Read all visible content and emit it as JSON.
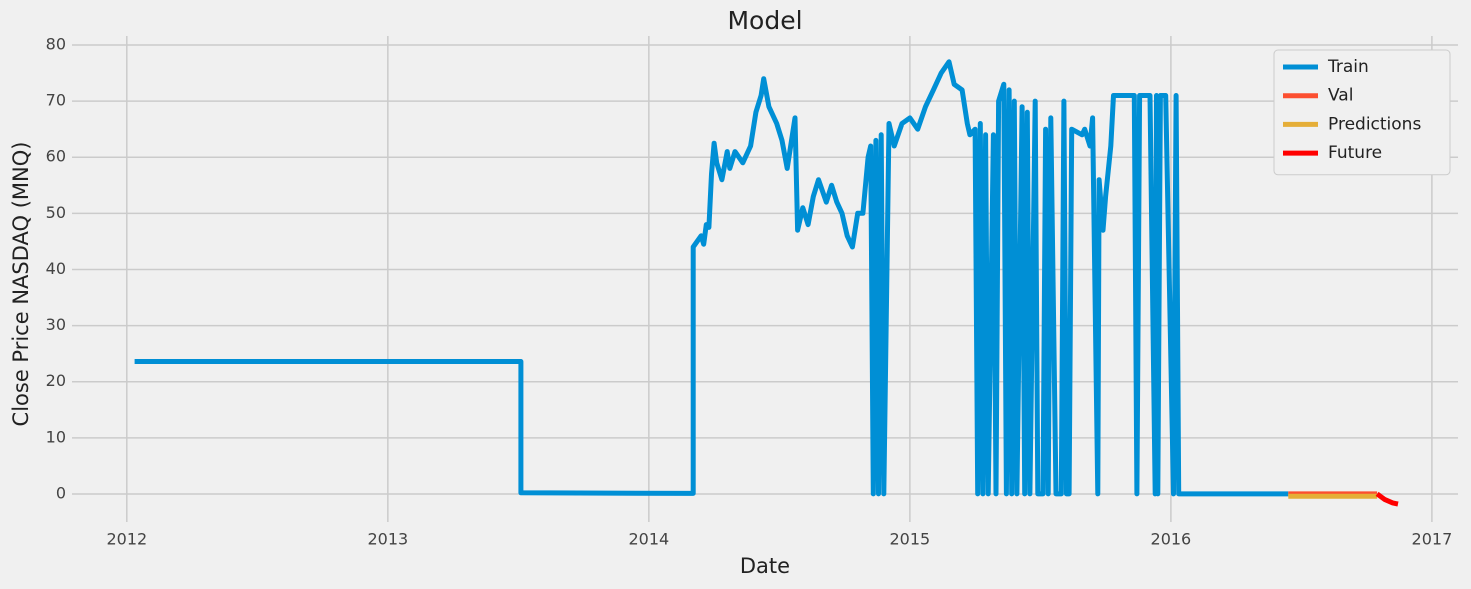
{
  "chart_data": {
    "type": "line",
    "title": "Model",
    "xlabel": "Date",
    "ylabel": "Close Price NASDAQ (MNQ)",
    "xlim": [
      2011.79,
      2017.1
    ],
    "xticks": [
      2012,
      2013,
      2014,
      2015,
      2016,
      2017
    ],
    "ylim": [
      -5,
      81.6
    ],
    "yticks": [
      0,
      10,
      20,
      30,
      40,
      50,
      60,
      70,
      80
    ],
    "grid": true,
    "legend": "upper right",
    "series": [
      {
        "name": "Train",
        "color": "#008fd5",
        "x": [
          2012.03,
          2013.51,
          2013.51,
          2014.17,
          2014.17,
          2014.2,
          2014.21,
          2014.22,
          2014.23,
          2014.24,
          2014.25,
          2014.26,
          2014.28,
          2014.3,
          2014.31,
          2014.33,
          2014.36,
          2014.39,
          2014.41,
          2014.43,
          2014.44,
          2014.46,
          2014.49,
          2014.51,
          2014.53,
          2014.54,
          2014.56,
          2014.57,
          2014.59,
          2014.61,
          2014.63,
          2014.65,
          2014.68,
          2014.7,
          2014.72,
          2014.74,
          2014.76,
          2014.78,
          2014.8,
          2014.82,
          2014.84,
          2014.85,
          2014.86,
          2014.87,
          2014.88,
          2014.89,
          2014.9,
          2014.92,
          2014.94,
          2014.97,
          2015.0,
          2015.03,
          2015.06,
          2015.09,
          2015.12,
          2015.15,
          2015.17,
          2015.2,
          2015.22,
          2015.23,
          2015.25,
          2015.26,
          2015.27,
          2015.28,
          2015.29,
          2015.3,
          2015.32,
          2015.33,
          2015.34,
          2015.36,
          2015.37,
          2015.38,
          2015.39,
          2015.4,
          2015.41,
          2015.43,
          2015.44,
          2015.45,
          2015.46,
          2015.48,
          2015.49,
          2015.51,
          2015.52,
          2015.53,
          2015.54,
          2015.56,
          2015.58,
          2015.59,
          2015.6,
          2015.61,
          2015.62,
          2015.66,
          2015.67,
          2015.69,
          2015.7,
          2015.72,
          2015.725,
          2015.74,
          2015.75,
          2015.77,
          2015.78,
          2015.82,
          2015.86,
          2015.87,
          2015.88,
          2015.92,
          2015.94,
          2015.945,
          2015.95,
          2015.96,
          2015.98,
          2016.01,
          2016.02,
          2016.03,
          2016.45
        ],
        "values": [
          23.6,
          23.6,
          0.2,
          0.1,
          44,
          46,
          44.5,
          48,
          47.5,
          57,
          62.5,
          59,
          56,
          61,
          58,
          61,
          59,
          62,
          68,
          71,
          74,
          69,
          66,
          63,
          58,
          61,
          67,
          47,
          51,
          48,
          53,
          56,
          52,
          55,
          52,
          50,
          46,
          44,
          50,
          50,
          60,
          62,
          0,
          63,
          0,
          64,
          0,
          66,
          62,
          66,
          67,
          65,
          69,
          72,
          75,
          77,
          73,
          72,
          66,
          64,
          65,
          0,
          66,
          0,
          64,
          0,
          64,
          0,
          70,
          73,
          0,
          72,
          0,
          70,
          0,
          69,
          0,
          68,
          0,
          70,
          0,
          0,
          65,
          0,
          67,
          0,
          0,
          70,
          0,
          0,
          65,
          64,
          65,
          62,
          67,
          0,
          56,
          47,
          53,
          62,
          71,
          71,
          71,
          0,
          71,
          71,
          0,
          71,
          0,
          71,
          71,
          0,
          71,
          0,
          0
        ]
      },
      {
        "name": "Val",
        "color": "#fc4f30",
        "x": [
          2016.45,
          2016.79
        ],
        "values": [
          0,
          0
        ]
      },
      {
        "name": "Predictions",
        "color": "#e5ae38",
        "x": [
          2016.45,
          2016.79
        ],
        "values": [
          -0.4,
          -0.4
        ]
      },
      {
        "name": "Future",
        "color": "#ff0000",
        "x": [
          2016.79,
          2016.82,
          2016.85,
          2016.87
        ],
        "values": [
          0,
          -1.0,
          -1.6,
          -1.8
        ]
      }
    ]
  }
}
